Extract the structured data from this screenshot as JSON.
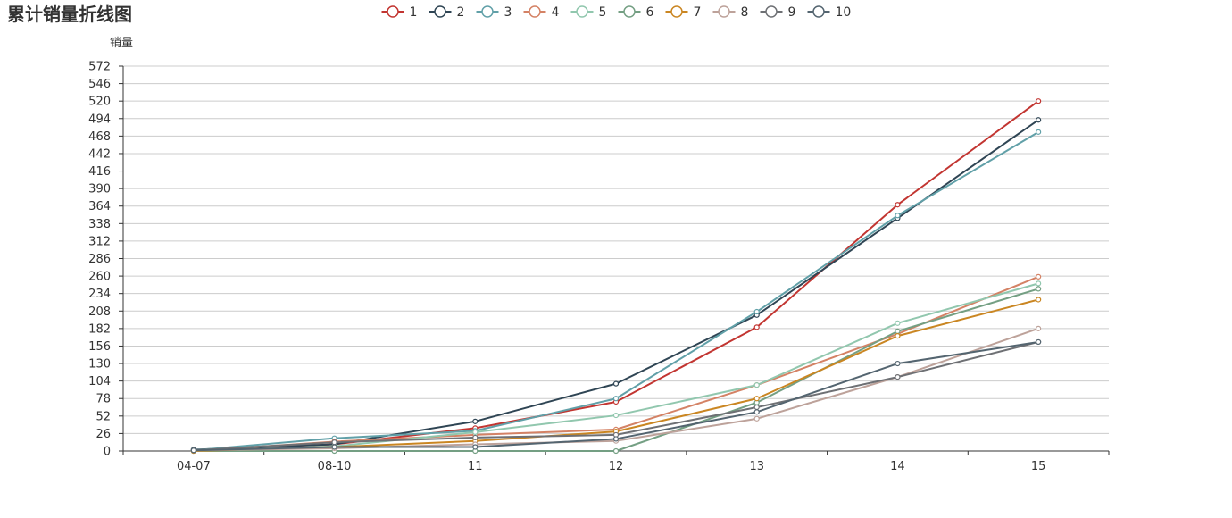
{
  "chart_data": {
    "type": "line",
    "title": "累计销量折线图",
    "ylabel": "销量",
    "xlabel": "",
    "categories": [
      "04-07",
      "08-10",
      "11",
      "12",
      "13",
      "14",
      "15"
    ],
    "yticks": [
      0,
      26,
      52,
      78,
      104,
      130,
      156,
      182,
      208,
      234,
      260,
      286,
      312,
      338,
      364,
      390,
      416,
      442,
      468,
      494,
      520,
      546,
      572
    ],
    "ylim": [
      0,
      572
    ],
    "grid": true,
    "legend_position": "top-center",
    "series": [
      {
        "name": "1",
        "color": "#c23531",
        "values": [
          1,
          10,
          34,
          73,
          184,
          366,
          520
        ]
      },
      {
        "name": "2",
        "color": "#2f4554",
        "values": [
          2,
          10,
          44,
          100,
          202,
          346,
          492
        ]
      },
      {
        "name": "3",
        "color": "#61a0a8",
        "values": [
          1,
          19,
          30,
          78,
          207,
          350,
          474
        ]
      },
      {
        "name": "4",
        "color": "#d48265",
        "values": [
          0,
          14,
          24,
          32,
          98,
          174,
          259
        ]
      },
      {
        "name": "5",
        "color": "#91c7ae",
        "values": [
          0,
          7,
          28,
          53,
          98,
          190,
          249
        ]
      },
      {
        "name": "6",
        "color": "#749f83",
        "values": [
          0,
          0,
          0,
          0,
          72,
          178,
          241
        ]
      },
      {
        "name": "7",
        "color": "#ca8622",
        "values": [
          0,
          6,
          15,
          29,
          78,
          171,
          225
        ]
      },
      {
        "name": "8",
        "color": "#bda29a",
        "values": [
          1,
          4,
          10,
          15,
          48,
          110,
          182
        ]
      },
      {
        "name": "9",
        "color": "#6e7074",
        "values": [
          1,
          13,
          20,
          24,
          65,
          110,
          162
        ]
      },
      {
        "name": "10",
        "color": "#546570",
        "values": [
          1,
          6,
          6,
          18,
          58,
          130,
          162
        ]
      }
    ]
  }
}
